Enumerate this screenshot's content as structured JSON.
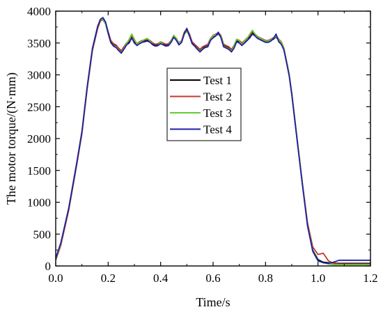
{
  "chart_data": {
    "type": "line",
    "title": "",
    "xlabel": "Time/s",
    "ylabel": "The motor torque/(N·mm)",
    "xlim": [
      0.0,
      1.2
    ],
    "ylim": [
      0,
      4000
    ],
    "xticks": [
      "0.0",
      "0.2",
      "0.4",
      "0.6",
      "0.8",
      "1.0",
      "1.2"
    ],
    "yticks": [
      "0",
      "500",
      "1000",
      "1500",
      "2000",
      "2500",
      "3000",
      "3500",
      "4000"
    ],
    "grid": false,
    "legend_position": "center",
    "series": [
      {
        "name": "Test 1",
        "color": "#000000",
        "x": [
          0.0,
          0.02,
          0.05,
          0.08,
          0.1,
          0.12,
          0.14,
          0.16,
          0.17,
          0.18,
          0.19,
          0.2,
          0.21,
          0.22,
          0.23,
          0.24,
          0.25,
          0.26,
          0.27,
          0.28,
          0.29,
          0.3,
          0.31,
          0.32,
          0.33,
          0.34,
          0.35,
          0.36,
          0.37,
          0.38,
          0.39,
          0.4,
          0.41,
          0.42,
          0.43,
          0.44,
          0.45,
          0.46,
          0.47,
          0.48,
          0.49,
          0.5,
          0.51,
          0.52,
          0.53,
          0.54,
          0.55,
          0.56,
          0.57,
          0.58,
          0.59,
          0.6,
          0.61,
          0.62,
          0.63,
          0.64,
          0.65,
          0.66,
          0.67,
          0.68,
          0.69,
          0.7,
          0.71,
          0.72,
          0.73,
          0.74,
          0.75,
          0.76,
          0.77,
          0.78,
          0.79,
          0.8,
          0.81,
          0.82,
          0.83,
          0.84,
          0.85,
          0.86,
          0.87,
          0.88,
          0.89,
          0.9,
          0.92,
          0.94,
          0.96,
          0.98,
          1.0,
          1.02,
          1.04,
          1.06,
          1.08,
          1.1,
          1.15,
          1.2
        ],
        "y": [
          100,
          350,
          900,
          1600,
          2100,
          2800,
          3400,
          3750,
          3850,
          3870,
          3800,
          3650,
          3520,
          3470,
          3450,
          3400,
          3360,
          3420,
          3480,
          3520,
          3600,
          3520,
          3470,
          3500,
          3520,
          3530,
          3540,
          3520,
          3480,
          3460,
          3470,
          3500,
          3480,
          3460,
          3470,
          3520,
          3600,
          3550,
          3480,
          3520,
          3650,
          3700,
          3620,
          3500,
          3460,
          3420,
          3380,
          3420,
          3440,
          3460,
          3550,
          3600,
          3620,
          3640,
          3600,
          3460,
          3440,
          3420,
          3380,
          3440,
          3540,
          3520,
          3480,
          3520,
          3560,
          3600,
          3660,
          3620,
          3580,
          3560,
          3540,
          3520,
          3520,
          3540,
          3560,
          3600,
          3540,
          3500,
          3400,
          3200,
          3000,
          2700,
          2000,
          1300,
          650,
          250,
          100,
          60,
          50,
          45,
          40,
          40,
          40,
          40
        ]
      },
      {
        "name": "Test 2",
        "color": "#c0392b",
        "x": [
          0.0,
          0.02,
          0.05,
          0.08,
          0.1,
          0.12,
          0.14,
          0.16,
          0.17,
          0.18,
          0.19,
          0.2,
          0.21,
          0.22,
          0.23,
          0.24,
          0.25,
          0.26,
          0.27,
          0.28,
          0.29,
          0.3,
          0.31,
          0.32,
          0.33,
          0.34,
          0.35,
          0.36,
          0.37,
          0.38,
          0.39,
          0.4,
          0.41,
          0.42,
          0.43,
          0.44,
          0.45,
          0.46,
          0.47,
          0.48,
          0.49,
          0.5,
          0.51,
          0.52,
          0.53,
          0.54,
          0.55,
          0.56,
          0.57,
          0.58,
          0.59,
          0.6,
          0.61,
          0.62,
          0.63,
          0.64,
          0.65,
          0.66,
          0.67,
          0.68,
          0.69,
          0.7,
          0.71,
          0.72,
          0.73,
          0.74,
          0.75,
          0.76,
          0.77,
          0.78,
          0.79,
          0.8,
          0.81,
          0.82,
          0.83,
          0.84,
          0.85,
          0.86,
          0.87,
          0.88,
          0.89,
          0.9,
          0.92,
          0.94,
          0.96,
          0.98,
          1.0,
          1.02,
          1.04,
          1.06,
          1.08,
          1.1,
          1.15,
          1.2
        ],
        "y": [
          90,
          330,
          880,
          1580,
          2080,
          2780,
          3380,
          3730,
          3840,
          3880,
          3820,
          3680,
          3540,
          3490,
          3470,
          3420,
          3380,
          3440,
          3500,
          3540,
          3620,
          3540,
          3490,
          3520,
          3540,
          3550,
          3560,
          3540,
          3500,
          3480,
          3490,
          3520,
          3500,
          3480,
          3490,
          3540,
          3620,
          3570,
          3500,
          3540,
          3670,
          3720,
          3640,
          3520,
          3480,
          3440,
          3400,
          3440,
          3460,
          3480,
          3570,
          3620,
          3640,
          3660,
          3620,
          3480,
          3460,
          3440,
          3400,
          3460,
          3560,
          3540,
          3500,
          3540,
          3580,
          3620,
          3680,
          3640,
          3600,
          3580,
          3560,
          3540,
          3540,
          3560,
          3580,
          3620,
          3560,
          3520,
          3420,
          3220,
          3020,
          2720,
          2020,
          1320,
          680,
          300,
          180,
          200,
          80,
          40,
          30,
          30,
          30,
          30
        ]
      },
      {
        "name": "Test 3",
        "color": "#66cc33",
        "x": [
          0.0,
          0.02,
          0.05,
          0.08,
          0.1,
          0.12,
          0.14,
          0.16,
          0.17,
          0.18,
          0.19,
          0.2,
          0.21,
          0.22,
          0.23,
          0.24,
          0.25,
          0.26,
          0.27,
          0.28,
          0.29,
          0.3,
          0.31,
          0.32,
          0.33,
          0.34,
          0.35,
          0.36,
          0.37,
          0.38,
          0.39,
          0.4,
          0.41,
          0.42,
          0.43,
          0.44,
          0.45,
          0.46,
          0.47,
          0.48,
          0.49,
          0.5,
          0.51,
          0.52,
          0.53,
          0.54,
          0.55,
          0.56,
          0.57,
          0.58,
          0.59,
          0.6,
          0.61,
          0.62,
          0.63,
          0.64,
          0.65,
          0.66,
          0.67,
          0.68,
          0.69,
          0.7,
          0.71,
          0.72,
          0.73,
          0.74,
          0.75,
          0.76,
          0.77,
          0.78,
          0.79,
          0.8,
          0.81,
          0.82,
          0.83,
          0.84,
          0.85,
          0.86,
          0.87,
          0.88,
          0.89,
          0.9,
          0.92,
          0.94,
          0.96,
          0.98,
          1.0,
          1.02,
          1.04,
          1.06,
          1.08,
          1.1,
          1.15,
          1.2
        ],
        "y": [
          110,
          360,
          920,
          1620,
          2120,
          2820,
          3420,
          3770,
          3860,
          3880,
          3800,
          3640,
          3500,
          3460,
          3440,
          3390,
          3350,
          3410,
          3490,
          3560,
          3640,
          3560,
          3480,
          3510,
          3530,
          3560,
          3570,
          3530,
          3470,
          3450,
          3460,
          3520,
          3470,
          3450,
          3460,
          3530,
          3620,
          3560,
          3490,
          3530,
          3640,
          3680,
          3610,
          3490,
          3450,
          3410,
          3370,
          3410,
          3430,
          3450,
          3560,
          3610,
          3630,
          3650,
          3610,
          3450,
          3430,
          3410,
          3370,
          3450,
          3560,
          3530,
          3470,
          3530,
          3570,
          3640,
          3700,
          3640,
          3590,
          3570,
          3550,
          3530,
          3530,
          3550,
          3570,
          3610,
          3550,
          3510,
          3410,
          3210,
          3010,
          2710,
          2010,
          1310,
          640,
          240,
          80,
          50,
          30,
          20,
          20,
          20,
          20,
          20
        ]
      },
      {
        "name": "Test 4",
        "color": "#1f1fa8",
        "x": [
          0.0,
          0.02,
          0.05,
          0.08,
          0.1,
          0.12,
          0.14,
          0.16,
          0.17,
          0.18,
          0.19,
          0.2,
          0.21,
          0.22,
          0.23,
          0.24,
          0.25,
          0.26,
          0.27,
          0.28,
          0.29,
          0.3,
          0.31,
          0.32,
          0.33,
          0.34,
          0.35,
          0.36,
          0.37,
          0.38,
          0.39,
          0.4,
          0.41,
          0.42,
          0.43,
          0.44,
          0.45,
          0.46,
          0.47,
          0.48,
          0.49,
          0.5,
          0.51,
          0.52,
          0.53,
          0.54,
          0.55,
          0.56,
          0.57,
          0.58,
          0.59,
          0.6,
          0.61,
          0.62,
          0.63,
          0.64,
          0.65,
          0.66,
          0.67,
          0.68,
          0.69,
          0.7,
          0.71,
          0.72,
          0.73,
          0.74,
          0.75,
          0.76,
          0.77,
          0.78,
          0.79,
          0.8,
          0.81,
          0.82,
          0.83,
          0.84,
          0.85,
          0.86,
          0.87,
          0.88,
          0.89,
          0.9,
          0.92,
          0.94,
          0.96,
          0.98,
          1.0,
          1.02,
          1.04,
          1.06,
          1.08,
          1.1,
          1.15,
          1.2
        ],
        "y": [
          120,
          370,
          910,
          1610,
          2110,
          2810,
          3410,
          3760,
          3870,
          3900,
          3830,
          3660,
          3510,
          3450,
          3430,
          3380,
          3340,
          3400,
          3470,
          3500,
          3580,
          3500,
          3460,
          3490,
          3510,
          3520,
          3530,
          3510,
          3470,
          3450,
          3460,
          3490,
          3470,
          3450,
          3460,
          3510,
          3590,
          3540,
          3470,
          3510,
          3640,
          3730,
          3610,
          3490,
          3450,
          3400,
          3360,
          3400,
          3430,
          3440,
          3540,
          3580,
          3610,
          3670,
          3580,
          3440,
          3420,
          3400,
          3360,
          3420,
          3520,
          3500,
          3460,
          3500,
          3540,
          3580,
          3640,
          3610,
          3570,
          3550,
          3530,
          3510,
          3510,
          3530,
          3570,
          3640,
          3520,
          3480,
          3390,
          3190,
          2990,
          2690,
          1990,
          1290,
          630,
          230,
          80,
          50,
          40,
          60,
          90,
          90,
          90,
          90
        ]
      }
    ]
  }
}
